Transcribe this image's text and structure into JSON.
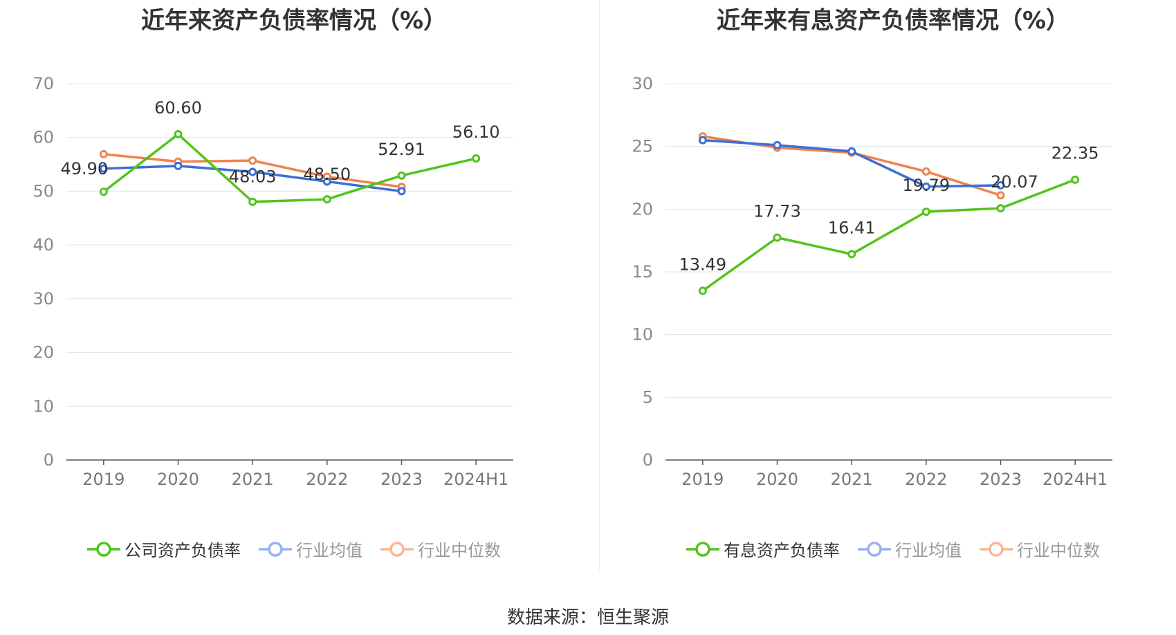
{
  "source": "数据来源：恒生聚源",
  "chart_data": [
    {
      "type": "line",
      "title": "近年来资产负债率情况（%）",
      "categories": [
        "2019",
        "2020",
        "2021",
        "2022",
        "2023",
        "2024H1"
      ],
      "ylim": [
        0,
        70
      ],
      "yticks": [
        0,
        10,
        20,
        30,
        40,
        50,
        60,
        70
      ],
      "grid": true,
      "legend_position": "bottom",
      "series": [
        {
          "name": "公司资产负债率",
          "color": "#52c41a",
          "values": [
            49.9,
            60.6,
            48.03,
            48.5,
            52.91,
            56.1
          ],
          "data_labels": [
            "49.90",
            "60.60",
            "48.03",
            "48.50",
            "52.91",
            "56.10"
          ]
        },
        {
          "name": "行业均值",
          "color": "#3b6fd8",
          "values": [
            54.2,
            54.7,
            53.6,
            51.8,
            50.0,
            null
          ]
        },
        {
          "name": "行业中位数",
          "color": "#f08250",
          "values": [
            56.9,
            55.5,
            55.7,
            52.7,
            50.8,
            null
          ]
        }
      ]
    },
    {
      "type": "line",
      "title": "近年来有息资产负债率情况（%）",
      "categories": [
        "2019",
        "2020",
        "2021",
        "2022",
        "2023",
        "2024H1"
      ],
      "ylim": [
        0,
        30
      ],
      "yticks": [
        0,
        5,
        10,
        15,
        20,
        25,
        30
      ],
      "grid": true,
      "legend_position": "bottom",
      "series": [
        {
          "name": "有息资产负债率",
          "color": "#52c41a",
          "values": [
            13.49,
            17.73,
            16.41,
            19.79,
            20.07,
            22.35
          ],
          "data_labels": [
            "13.49",
            "17.73",
            "16.41",
            "19.79",
            "20.07",
            "22.35"
          ]
        },
        {
          "name": "行业均值",
          "color": "#3b6fd8",
          "values": [
            25.5,
            25.1,
            24.6,
            21.8,
            21.9,
            null
          ]
        },
        {
          "name": "行业中位数",
          "color": "#f08250",
          "values": [
            25.8,
            24.9,
            24.5,
            23.0,
            21.1,
            null
          ]
        }
      ]
    }
  ]
}
